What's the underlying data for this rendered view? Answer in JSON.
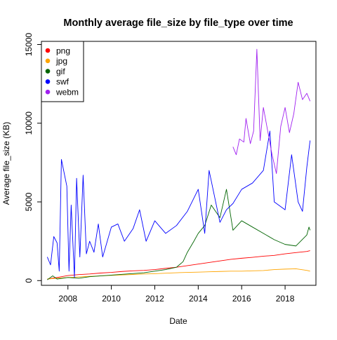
{
  "chart_data": {
    "type": "line",
    "title": "Monthly average file_size by file_type over time",
    "xlabel": "Date",
    "ylabel": "Average file_size (KB)",
    "xlim": [
      2006.78,
      2019.42
    ],
    "ylim": [
      -300,
      15200
    ],
    "x_ticks": [
      {
        "value": 2008,
        "label": "2008"
      },
      {
        "value": 2010,
        "label": "2010"
      },
      {
        "value": 2012,
        "label": "2012"
      },
      {
        "value": 2014,
        "label": "2014"
      },
      {
        "value": 2016,
        "label": "2016"
      },
      {
        "value": 2018,
        "label": "2018"
      }
    ],
    "y_ticks": [
      {
        "value": 0,
        "label": "0"
      },
      {
        "value": 5000,
        "label": "5000"
      },
      {
        "value": 10000,
        "label": "10000"
      },
      {
        "value": 15000,
        "label": "15000"
      }
    ],
    "legend_position": "top-left",
    "series": [
      {
        "name": "png",
        "color": "#ff0000",
        "points": [
          [
            2007.05,
            100
          ],
          [
            2007.5,
            200
          ],
          [
            2008,
            320
          ],
          [
            2008.5,
            380
          ],
          [
            2009,
            420
          ],
          [
            2009.5,
            480
          ],
          [
            2010,
            520
          ],
          [
            2010.5,
            580
          ],
          [
            2011,
            620
          ],
          [
            2011.5,
            650
          ],
          [
            2012,
            700
          ],
          [
            2012.5,
            780
          ],
          [
            2013,
            850
          ],
          [
            2013.5,
            950
          ],
          [
            2014,
            1050
          ],
          [
            2014.5,
            1150
          ],
          [
            2015,
            1250
          ],
          [
            2015.5,
            1350
          ],
          [
            2016,
            1420
          ],
          [
            2016.5,
            1480
          ],
          [
            2017,
            1550
          ],
          [
            2017.5,
            1600
          ],
          [
            2018,
            1700
          ],
          [
            2018.5,
            1780
          ],
          [
            2019,
            1850
          ],
          [
            2019.15,
            1900
          ]
        ]
      },
      {
        "name": "jpg",
        "color": "#ffa500",
        "points": [
          [
            2007.05,
            100
          ],
          [
            2007.5,
            150
          ],
          [
            2008,
            200
          ],
          [
            2008.5,
            230
          ],
          [
            2009,
            270
          ],
          [
            2009.5,
            300
          ],
          [
            2010,
            330
          ],
          [
            2010.5,
            360
          ],
          [
            2011,
            390
          ],
          [
            2011.5,
            420
          ],
          [
            2012,
            440
          ],
          [
            2012.5,
            470
          ],
          [
            2013,
            500
          ],
          [
            2013.5,
            520
          ],
          [
            2014,
            540
          ],
          [
            2014.5,
            560
          ],
          [
            2015,
            580
          ],
          [
            2015.5,
            600
          ],
          [
            2016,
            600
          ],
          [
            2016.5,
            620
          ],
          [
            2017,
            640
          ],
          [
            2017.5,
            700
          ],
          [
            2018,
            730
          ],
          [
            2018.5,
            750
          ],
          [
            2019,
            650
          ],
          [
            2019.15,
            600
          ]
        ]
      },
      {
        "name": "gif",
        "color": "#006400",
        "points": [
          [
            2007.05,
            50
          ],
          [
            2007.3,
            300
          ],
          [
            2007.5,
            100
          ],
          [
            2008,
            200
          ],
          [
            2008.5,
            150
          ],
          [
            2009,
            250
          ],
          [
            2009.5,
            300
          ],
          [
            2010,
            350
          ],
          [
            2010.5,
            400
          ],
          [
            2011,
            450
          ],
          [
            2011.5,
            500
          ],
          [
            2012,
            600
          ],
          [
            2012.5,
            700
          ],
          [
            2013,
            850
          ],
          [
            2013.3,
            1200
          ],
          [
            2013.5,
            1800
          ],
          [
            2013.8,
            2500
          ],
          [
            2014,
            3000
          ],
          [
            2014.3,
            3500
          ],
          [
            2014.6,
            4800
          ],
          [
            2015,
            4000
          ],
          [
            2015.3,
            5800
          ],
          [
            2015.6,
            3200
          ],
          [
            2016,
            3800
          ],
          [
            2016.5,
            3400
          ],
          [
            2017,
            3000
          ],
          [
            2017.5,
            2600
          ],
          [
            2018,
            2300
          ],
          [
            2018.5,
            2200
          ],
          [
            2019,
            2900
          ],
          [
            2019.1,
            3400
          ],
          [
            2019.15,
            3200
          ]
        ]
      },
      {
        "name": "swf",
        "color": "#0000ff",
        "points": [
          [
            2007.05,
            1500
          ],
          [
            2007.2,
            1000
          ],
          [
            2007.35,
            2800
          ],
          [
            2007.5,
            2400
          ],
          [
            2007.6,
            600
          ],
          [
            2007.7,
            7700
          ],
          [
            2007.95,
            6000
          ],
          [
            2008.05,
            600
          ],
          [
            2008.15,
            4800
          ],
          [
            2008.3,
            200
          ],
          [
            2008.4,
            6500
          ],
          [
            2008.55,
            1500
          ],
          [
            2008.7,
            6700
          ],
          [
            2008.85,
            1700
          ],
          [
            2009,
            2500
          ],
          [
            2009.2,
            1800
          ],
          [
            2009.4,
            3600
          ],
          [
            2009.6,
            1500
          ],
          [
            2010,
            3400
          ],
          [
            2010.3,
            3600
          ],
          [
            2010.6,
            2500
          ],
          [
            2011,
            3300
          ],
          [
            2011.3,
            4500
          ],
          [
            2011.6,
            2500
          ],
          [
            2012,
            3800
          ],
          [
            2012.5,
            3000
          ],
          [
            2013,
            3500
          ],
          [
            2013.5,
            4400
          ],
          [
            2014,
            5800
          ],
          [
            2014.3,
            3000
          ],
          [
            2014.5,
            7000
          ],
          [
            2015,
            3700
          ],
          [
            2015.3,
            4500
          ],
          [
            2015.6,
            4900
          ],
          [
            2016,
            5800
          ],
          [
            2016.5,
            6200
          ],
          [
            2017,
            7000
          ],
          [
            2017.3,
            9500
          ],
          [
            2017.5,
            5000
          ],
          [
            2018,
            4500
          ],
          [
            2018.3,
            8000
          ],
          [
            2018.6,
            5000
          ],
          [
            2018.8,
            4400
          ],
          [
            2019,
            7200
          ],
          [
            2019.15,
            8900
          ]
        ]
      },
      {
        "name": "webm",
        "color": "#a020f0",
        "points": [
          [
            2015.6,
            8500
          ],
          [
            2015.75,
            8000
          ],
          [
            2015.9,
            9000
          ],
          [
            2016.1,
            8800
          ],
          [
            2016.2,
            10300
          ],
          [
            2016.4,
            8700
          ],
          [
            2016.55,
            9500
          ],
          [
            2016.7,
            14700
          ],
          [
            2016.85,
            8900
          ],
          [
            2017,
            11000
          ],
          [
            2017.2,
            9500
          ],
          [
            2017.4,
            8000
          ],
          [
            2017.6,
            6800
          ],
          [
            2017.8,
            9800
          ],
          [
            2018,
            11000
          ],
          [
            2018.2,
            9400
          ],
          [
            2018.4,
            10600
          ],
          [
            2018.6,
            12600
          ],
          [
            2018.8,
            11500
          ],
          [
            2019,
            11900
          ],
          [
            2019.15,
            11400
          ]
        ]
      }
    ]
  }
}
